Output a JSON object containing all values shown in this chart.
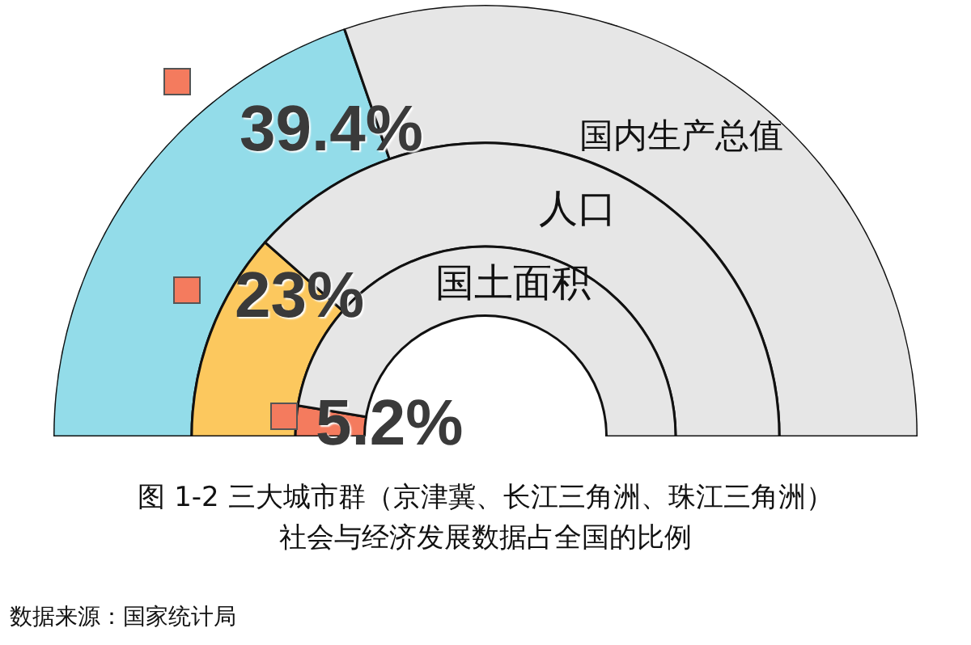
{
  "chart_data": {
    "type": "donut",
    "title": "图 1-2  三大城市群（京津冀、长江三角洲、珠江三角洲）",
    "subtitle": "社会与经济发展数据占全国的比例",
    "categories": [
      null,
      null
    ],
    "series": [
      {
        "name": "国内生产总值",
        "values": [
          39.4,
          60.6
        ],
        "colors": [
          "#93dce9",
          "#e6e6e6"
        ],
        "value_labels": [
          "39.4%",
          null
        ]
      },
      {
        "name": "人口",
        "values": [
          23,
          77
        ],
        "colors": [
          "#fcc85e",
          "#e6e6e6"
        ],
        "value_labels": [
          "23%",
          null
        ]
      },
      {
        "name": "国土面积",
        "values": [
          5.2,
          94.8
        ],
        "colors": [
          "#f47b5e",
          "#e6e6e6"
        ],
        "value_labels": [
          "5.2%",
          null
        ]
      }
    ],
    "annotations": [
      "数据来源：国家统计局"
    ]
  }
}
